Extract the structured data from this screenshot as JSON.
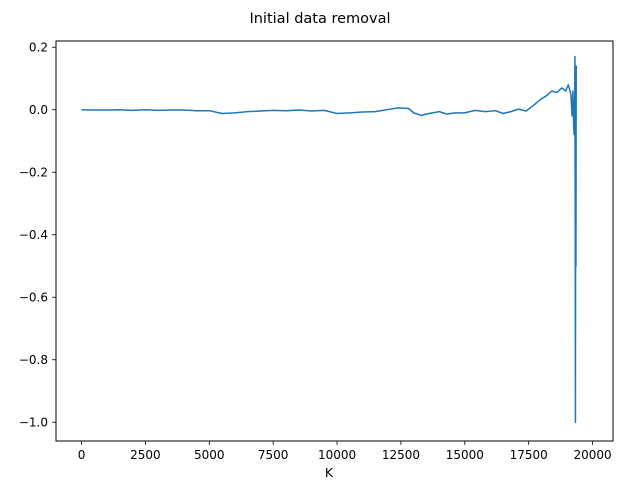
{
  "chart_data": {
    "type": "line",
    "title": "Initial data removal",
    "xlabel": "K",
    "ylabel": "",
    "xlim": [
      -1000,
      20800
    ],
    "ylim": [
      -1.06,
      0.22
    ],
    "grid": false,
    "xticks": [
      0,
      2500,
      5000,
      7500,
      10000,
      12500,
      15000,
      17500,
      20000
    ],
    "xtick_labels": [
      "0",
      "2500",
      "5000",
      "7500",
      "10000",
      "12500",
      "15000",
      "17500",
      "20000"
    ],
    "yticks": [
      0.2,
      0.0,
      -0.2,
      -0.4,
      -0.6,
      -0.8,
      -1.0
    ],
    "ytick_labels": [
      "0.2",
      "0.0",
      "−0.2",
      "−0.4",
      "−0.6",
      "−0.8",
      "−1.0"
    ],
    "series": [
      {
        "name": "",
        "color": "#1f77b4",
        "x": [
          0,
          500,
          1000,
          1500,
          2000,
          2500,
          3000,
          3500,
          4000,
          4500,
          5000,
          5500,
          6000,
          6500,
          7000,
          7500,
          8000,
          8500,
          9000,
          9500,
          10000,
          10500,
          11000,
          11500,
          12000,
          12400,
          12800,
          13000,
          13300,
          13600,
          14000,
          14300,
          14600,
          15000,
          15400,
          15800,
          16200,
          16500,
          16800,
          17100,
          17400,
          17700,
          18000,
          18200,
          18400,
          18600,
          18800,
          18950,
          19050,
          19150,
          19200,
          19230,
          19260,
          19280,
          19300,
          19310,
          19320,
          19330,
          19340,
          19350,
          19360,
          19370
        ],
        "y": [
          0.0,
          -0.001,
          -0.001,
          0.0,
          -0.002,
          0.0,
          -0.002,
          -0.001,
          -0.001,
          -0.003,
          -0.003,
          -0.012,
          -0.01,
          -0.006,
          -0.004,
          -0.002,
          -0.003,
          -0.001,
          -0.004,
          -0.002,
          -0.012,
          -0.01,
          -0.007,
          -0.006,
          0.001,
          0.006,
          0.004,
          -0.01,
          -0.018,
          -0.012,
          -0.006,
          -0.014,
          -0.01,
          -0.01,
          -0.002,
          -0.006,
          -0.003,
          -0.012,
          -0.006,
          0.002,
          -0.004,
          0.015,
          0.035,
          0.045,
          0.06,
          0.055,
          0.07,
          0.06,
          0.08,
          0.05,
          -0.02,
          0.06,
          -0.05,
          -0.08,
          0.02,
          0.17,
          -0.3,
          -1.0,
          0.12,
          -0.5,
          0.14,
          0.13
        ]
      }
    ]
  }
}
